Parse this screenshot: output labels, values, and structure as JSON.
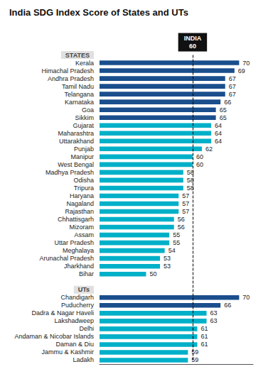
{
  "chart_data": {
    "type": "bar",
    "orientation": "horizontal",
    "title": "India SDG Index Score of States and UTs",
    "sections": [
      {
        "label": "STATES",
        "categories": [
          "Kerala",
          "Himachal Pradesh",
          "Andhra Pradesh",
          "Tamil Nadu",
          "Telangana",
          "Karnataka",
          "Goa",
          "Sikkim",
          "Gujarat",
          "Maharashtra",
          "Uttarakhand",
          "Punjab",
          "Manipur",
          "West Bengal",
          "Madhya Pradesh",
          "Odisha",
          "Tripura",
          "Haryana",
          "Nagaland",
          "Rajasthan",
          "Chhattisgarh",
          "Mizoram",
          "Assam",
          "Uttar Pradesh",
          "Meghalaya",
          "Arunachal Pradesh",
          "Jharkhand",
          "Bihar"
        ],
        "values": [
          70,
          69,
          67,
          67,
          67,
          66,
          65,
          65,
          64,
          64,
          64,
          62,
          60,
          60,
          58,
          58,
          58,
          57,
          57,
          57,
          56,
          56,
          55,
          55,
          54,
          53,
          53,
          50
        ],
        "colors": [
          "#1a4e8c",
          "#1a4e8c",
          "#1a4e8c",
          "#1a4e8c",
          "#1a4e8c",
          "#1a4e8c",
          "#1a4e8c",
          "#1a4e8c",
          "#00b0c8",
          "#00b0c8",
          "#00b0c8",
          "#00b0c8",
          "#00b0c8",
          "#00b0c8",
          "#00b0c8",
          "#00b0c8",
          "#00b0c8",
          "#00b0c8",
          "#00b0c8",
          "#00b0c8",
          "#00b0c8",
          "#00b0c8",
          "#00b0c8",
          "#00b0c8",
          "#00b0c8",
          "#00b0c8",
          "#00b0c8",
          "#00b0c8"
        ]
      },
      {
        "label": "UTs",
        "categories": [
          "Chandigarh",
          "Puducherry",
          "Dadra & Nagar Haveli",
          "Lakshadweep",
          "Delhi",
          "Andaman & Nicobar Islands",
          "Daman & Diu",
          "Jammu & Kashmir",
          "Ladakh"
        ],
        "values": [
          70,
          66,
          63,
          63,
          61,
          61,
          61,
          59,
          59
        ],
        "colors": [
          "#1a4e8c",
          "#1a4e8c",
          "#00b0c8",
          "#00b0c8",
          "#00b0c8",
          "#00b0c8",
          "#00b0c8",
          "#00b0c8",
          "#00b0c8"
        ]
      }
    ],
    "xlim": [
      40,
      73
    ],
    "xticks": [],
    "tick_labels": "y",
    "grid": false,
    "data_labels": true,
    "reference_line": {
      "value": 60,
      "label": "INDIA",
      "value_label": "60",
      "color": "#000000",
      "line_style": "dashed"
    }
  }
}
